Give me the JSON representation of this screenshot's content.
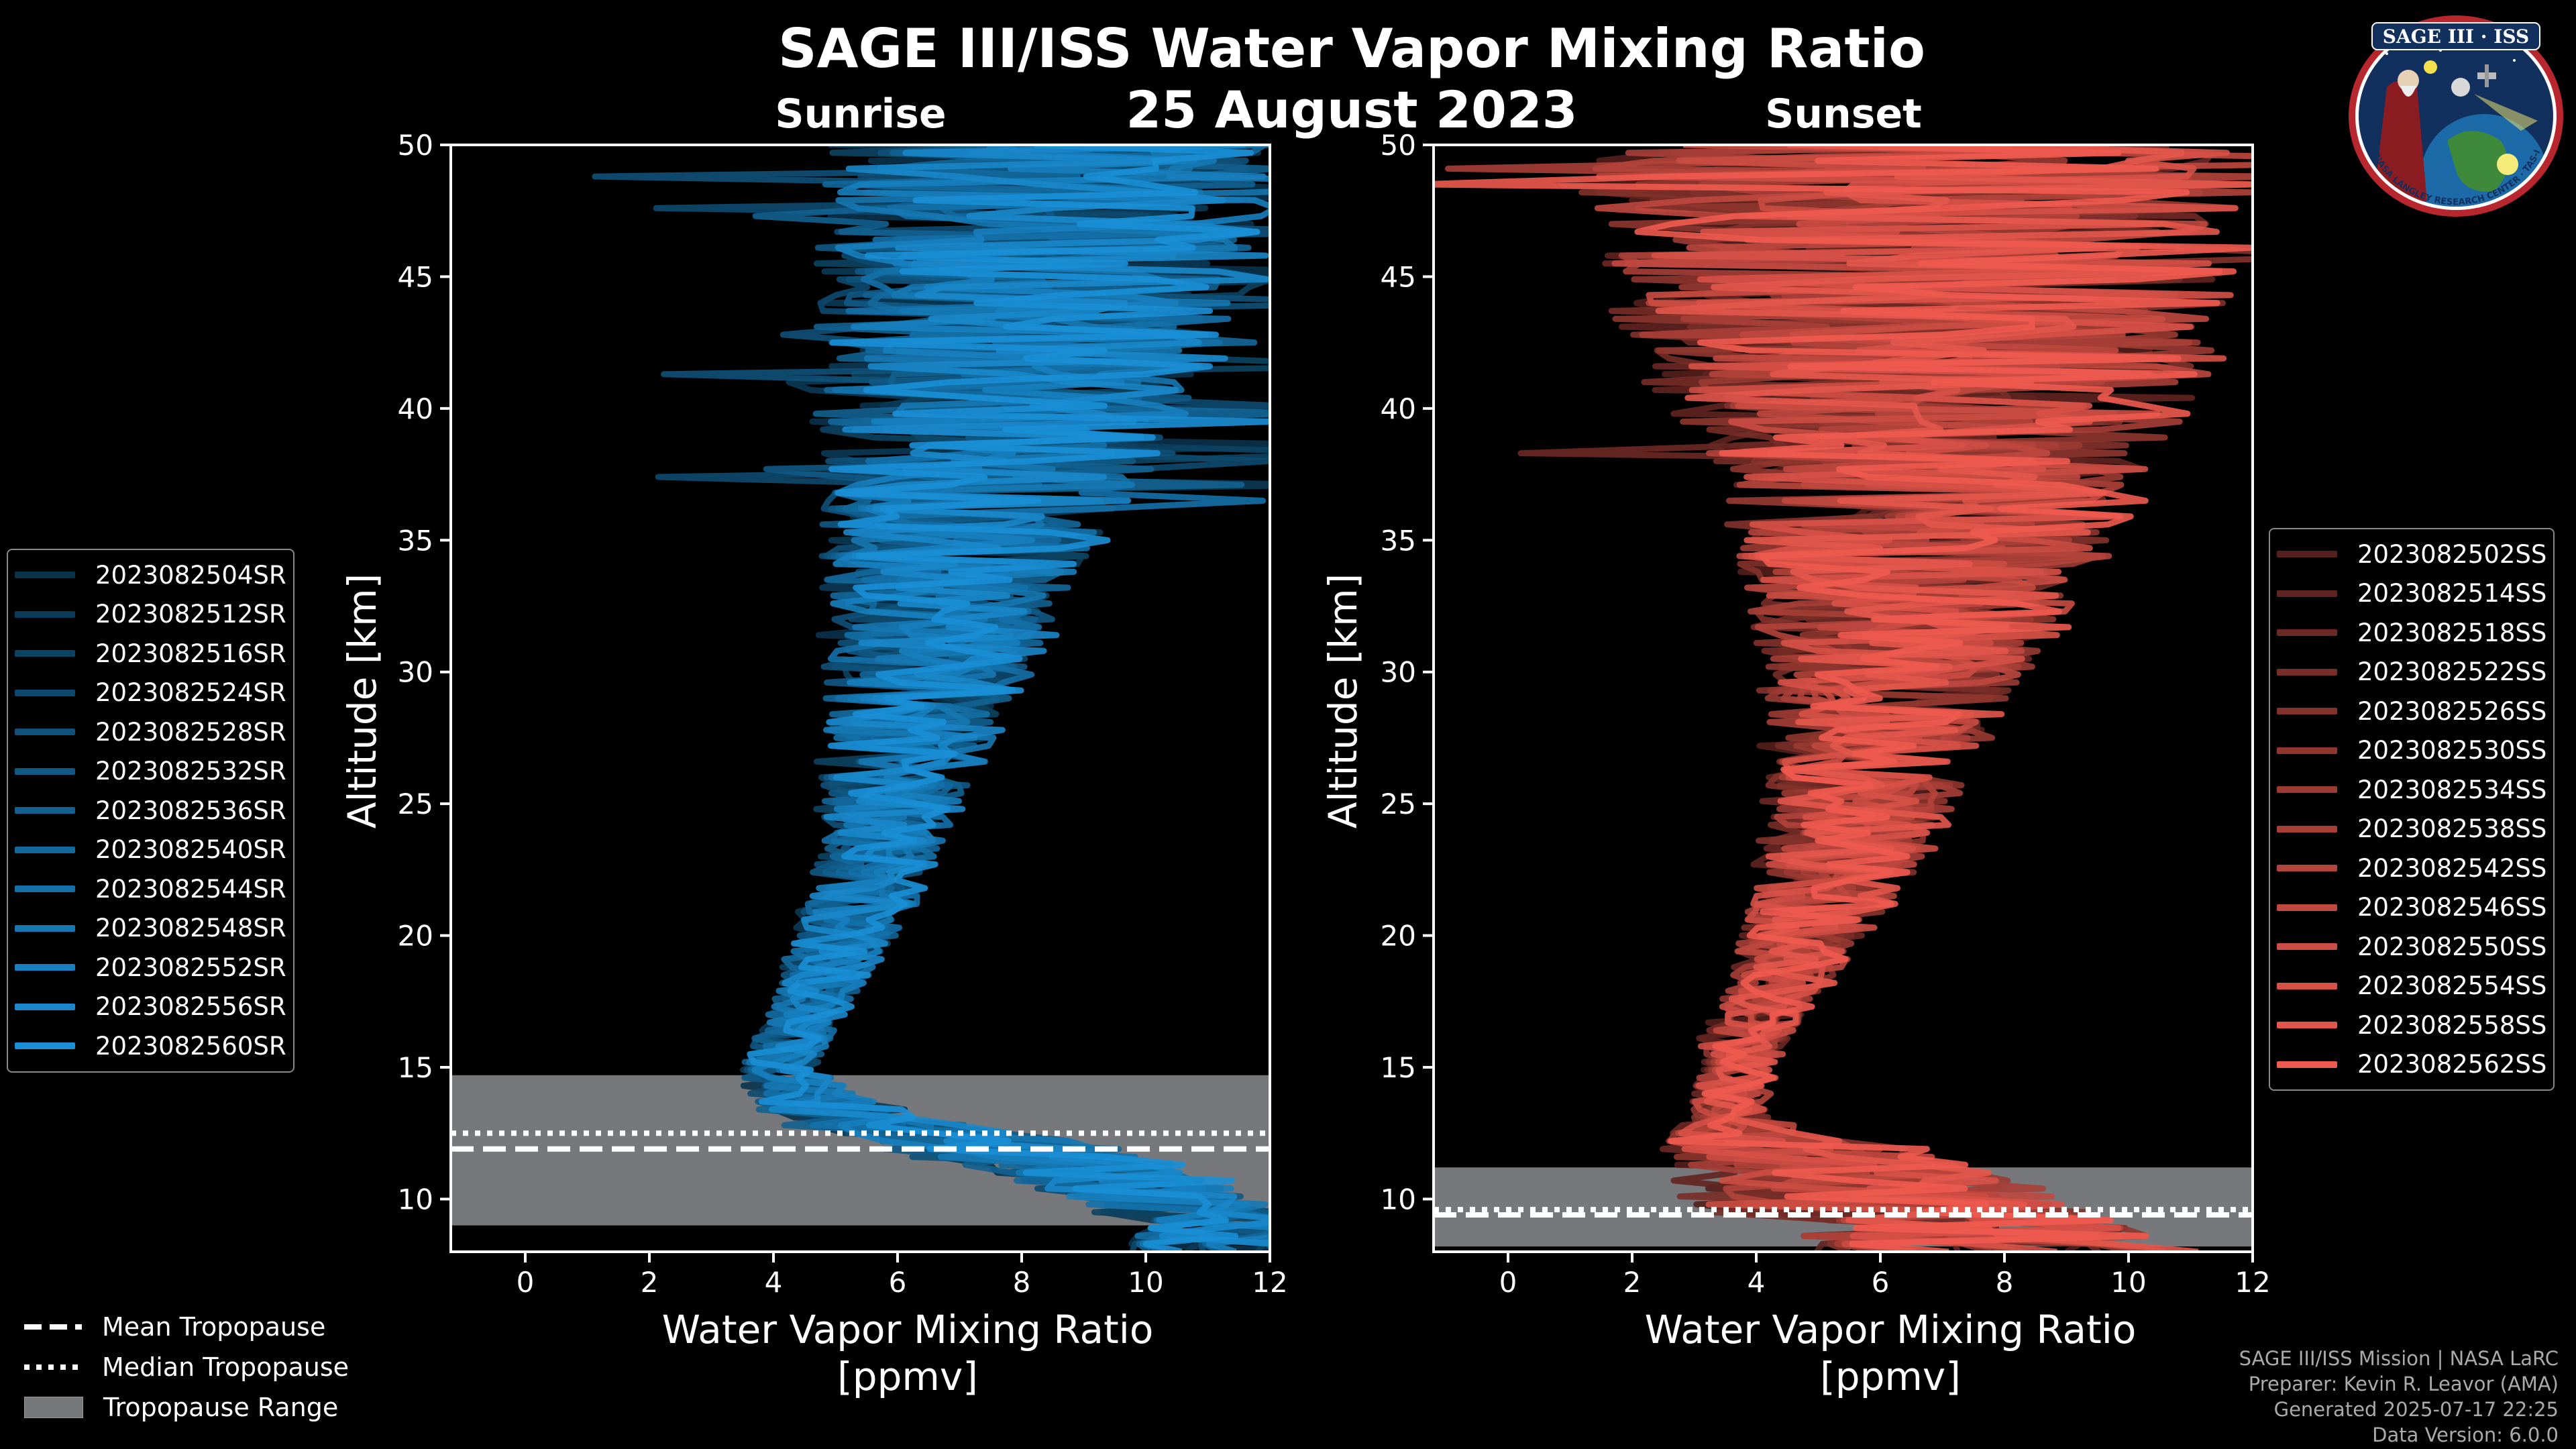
{
  "title": "SAGE III/ISS Water Vapor Mixing Ratio",
  "date": "25 August 2023",
  "badge": {
    "top_text": "SAGE III · ISS",
    "bottom_text": "BALL · NASA LANGLEY RESEARCH CENTER · TAS-I · ESA"
  },
  "colors": {
    "sunrise": "#1a8fd6",
    "sunset": "#ef5a4f",
    "range_fill": "#77787c"
  },
  "chart_data": [
    {
      "type": "line",
      "panel": "left",
      "subtitle": "Sunrise",
      "xlabel": "Water Vapor Mixing Ratio\n[ppmv]",
      "xlabel_line1": "Water Vapor Mixing Ratio",
      "xlabel_line2": "[ppmv]",
      "ylabel": "Altitude [km]",
      "xlim": [
        -1.2,
        12
      ],
      "ylim": [
        8,
        50
      ],
      "xticks": [
        0,
        2,
        4,
        6,
        8,
        10,
        12
      ],
      "yticks": [
        10,
        15,
        20,
        25,
        30,
        35,
        40,
        45,
        50
      ],
      "series_names": [
        "2023082504SR",
        "2023082512SR",
        "2023082516SR",
        "2023082524SR",
        "2023082528SR",
        "2023082532SR",
        "2023082536SR",
        "2023082540SR",
        "2023082544SR",
        "2023082548SR",
        "2023082552SR",
        "2023082556SR",
        "2023082560SR"
      ],
      "tropopause": {
        "range": [
          9.0,
          14.7
        ],
        "mean": 11.9,
        "median": 12.5
      },
      "profile_shape": {
        "alt": [
          9,
          10,
          11,
          12,
          13,
          14,
          15,
          16,
          17,
          18,
          20,
          22,
          24,
          26,
          28,
          30,
          32,
          34,
          36,
          38,
          40,
          42,
          44,
          46,
          48,
          50
        ],
        "center": [
          11,
          10,
          9,
          7,
          5,
          4.3,
          4.0,
          4.2,
          4.4,
          4.6,
          5.0,
          5.4,
          5.6,
          5.8,
          6.0,
          6.2,
          6.4,
          6.6,
          6.8,
          7.0,
          7.2,
          7.4,
          7.6,
          7.7,
          7.8,
          7.8
        ],
        "spread": [
          1.5,
          1.5,
          1.8,
          2.0,
          1.5,
          0.8,
          0.6,
          0.6,
          0.6,
          0.7,
          0.8,
          0.9,
          1.0,
          1.2,
          1.4,
          1.6,
          1.8,
          2.0,
          2.3,
          2.6,
          2.9,
          3.1,
          3.3,
          3.5,
          3.6,
          3.6
        ]
      }
    },
    {
      "type": "line",
      "panel": "right",
      "subtitle": "Sunset",
      "xlabel": "Water Vapor Mixing Ratio\n[ppmv]",
      "xlabel_line1": "Water Vapor Mixing Ratio",
      "xlabel_line2": "[ppmv]",
      "ylabel": "Altitude [km]",
      "xlim": [
        -1.2,
        12
      ],
      "ylim": [
        8,
        50
      ],
      "xticks": [
        0,
        2,
        4,
        6,
        8,
        10,
        12
      ],
      "yticks": [
        10,
        15,
        20,
        25,
        30,
        35,
        40,
        45,
        50
      ],
      "series_names": [
        "2023082502SS",
        "2023082514SS",
        "2023082518SS",
        "2023082522SS",
        "2023082526SS",
        "2023082530SS",
        "2023082534SS",
        "2023082538SS",
        "2023082542SS",
        "2023082546SS",
        "2023082550SS",
        "2023082554SS",
        "2023082558SS",
        "2023082562SS"
      ],
      "tropopause": {
        "range": [
          8.2,
          11.2
        ],
        "mean": 9.4,
        "median": 9.6
      },
      "profile_shape": {
        "alt": [
          8,
          9,
          10,
          11,
          12,
          13,
          14,
          15,
          16,
          17,
          18,
          20,
          22,
          24,
          26,
          28,
          30,
          32,
          34,
          36,
          38,
          40,
          42,
          44,
          46,
          48,
          50
        ],
        "center": [
          9,
          8,
          7,
          6,
          5,
          3.8,
          3.8,
          3.9,
          4.0,
          4.3,
          4.6,
          5.1,
          5.6,
          6.0,
          6.3,
          6.6,
          6.9,
          7.2,
          7.5,
          7.7,
          7.9,
          8.0,
          8.1,
          8.2,
          8.3,
          8.3,
          8.3
        ],
        "spread": [
          3.0,
          3.0,
          3.0,
          2.5,
          2.0,
          0.6,
          0.6,
          0.6,
          0.7,
          0.7,
          0.8,
          1.0,
          1.2,
          1.4,
          1.6,
          1.8,
          2.1,
          2.4,
          2.8,
          3.2,
          3.6,
          4.0,
          4.4,
          4.8,
          5.0,
          5.2,
          5.2
        ]
      }
    }
  ],
  "tropopause_legend": [
    "Mean Tropopause",
    "Median Tropopause",
    "Tropopause Range"
  ],
  "credits": [
    "SAGE III/ISS Mission | NASA LaRC",
    "Preparer: Kevin R. Leavor (AMA)",
    "Generated 2025-07-17 22:25",
    "Data Version: 6.0.0"
  ]
}
